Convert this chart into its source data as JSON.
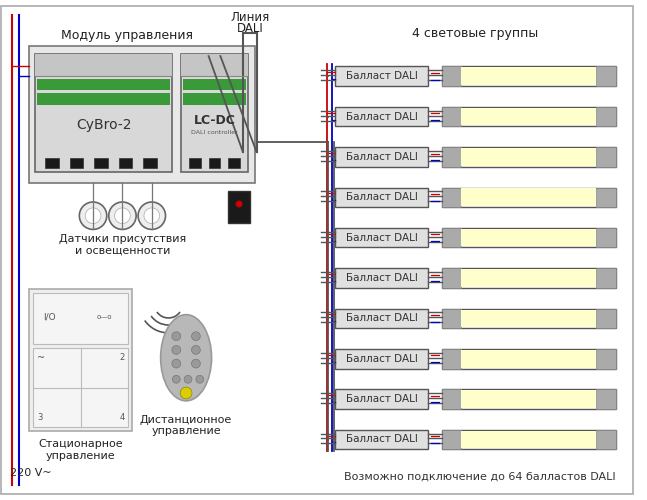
{
  "bg_color": "#ffffff",
  "label_modyle": "Модуль управления",
  "label_linia": "Линия\nDALI",
  "label_sensors": "Датчики присутствия\nи освещенности",
  "label_stationary": "Стационарное\nуправление",
  "label_remote": "Дистанционное\nуправление",
  "label_groups": "4 световые группы",
  "label_ballast": "Балласт DALI",
  "label_220": "220 V~",
  "label_bottom": "Возможно подключение до 64 балластов DALI",
  "label_cybro": "CyBro-2",
  "label_lcdc": "LC-DC",
  "n_ballasts": 10,
  "cybro_green": "#3a9a3a",
  "lcdc_green": "#3a9a3a",
  "lamp_color": "#ffffcc",
  "wire_red": "#cc0000",
  "wire_blue": "#0000cc",
  "wire_gray": "#555555"
}
